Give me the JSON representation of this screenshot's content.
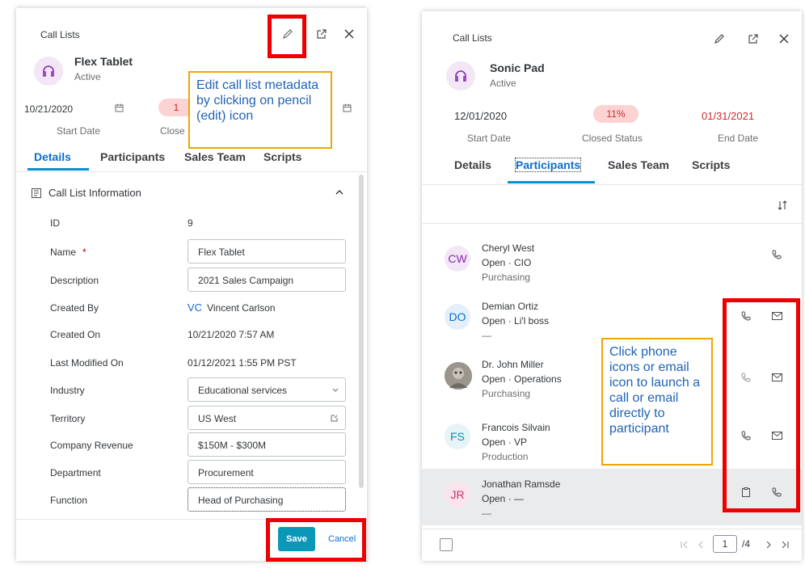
{
  "left": {
    "breadcrumb": "Call Lists",
    "record_name": "Flex Tablet",
    "record_status": "Active",
    "start_date_value": "10/21/2020",
    "closed_value_partial": "1",
    "start_date_label": "Start Date",
    "closed_label_partial": "Close",
    "tabs": [
      "Details",
      "Participants",
      "Sales Team",
      "Scripts"
    ],
    "section_title": "Call List Information",
    "fields": {
      "id_label": "ID",
      "id_value": "9",
      "name_label": "Name",
      "name_required": "*",
      "name_value": "Flex Tablet",
      "description_label": "Description",
      "description_value": "2021 Sales Campaign",
      "created_by_label": "Created By",
      "created_by_initials": "VC",
      "created_by_value": "Vincent Carlson",
      "created_on_label": "Created On",
      "created_on_value": "10/21/2020 7:57 AM",
      "last_modified_label": "Last Modified On",
      "last_modified_value": "01/12/2021 1:55 PM PST",
      "industry_label": "Industry",
      "industry_value": "Educational services",
      "territory_label": "Territory",
      "territory_value": "US West",
      "revenue_label": "Company Revenue",
      "revenue_value": "$150M - $300M",
      "department_label": "Department",
      "department_value": "Procurement",
      "function_label": "Function",
      "function_value": "Head of Purchasing"
    },
    "save_label": "Save",
    "cancel_label": "Cancel",
    "callout": "Edit call list metadata by clicking on pencil (edit) icon"
  },
  "right": {
    "breadcrumb": "Call Lists",
    "record_name": "Sonic Pad",
    "record_status": "Active",
    "start_date_value": "12/01/2020",
    "closed_value": "11%",
    "end_date_value": "01/31/2021",
    "start_date_label": "Start Date",
    "closed_label": "Closed Status",
    "end_date_label": "End Date",
    "tabs": [
      "Details",
      "Participants",
      "Sales Team",
      "Scripts"
    ],
    "participants": [
      {
        "initials": "CW",
        "name": "Cheryl West",
        "line2": "Open · CIO",
        "line3": "Purchasing"
      },
      {
        "initials": "DO",
        "name": "Demian Ortiz",
        "line2": "Open · Li'l boss",
        "line3": "—"
      },
      {
        "initials": "",
        "name": "Dr. John Miller",
        "line2": "Open · Operations",
        "line3": "Purchasing"
      },
      {
        "initials": "FS",
        "name": "Francois Silvain",
        "line2": "Open · VP",
        "line3": "Production"
      },
      {
        "initials": "JR",
        "name": "Jonathan Ramsde",
        "line2": "Open · —",
        "line3": "—"
      }
    ],
    "pager": {
      "page": "1",
      "total": "/4"
    },
    "callout": "Click phone icons or email icon to launch a call or email directly to participant"
  },
  "colors": {
    "accent": "#0a6ed1",
    "highlight_red": "#ee0000",
    "callout_border": "#f0a500",
    "save_button": "#0a97b8"
  }
}
